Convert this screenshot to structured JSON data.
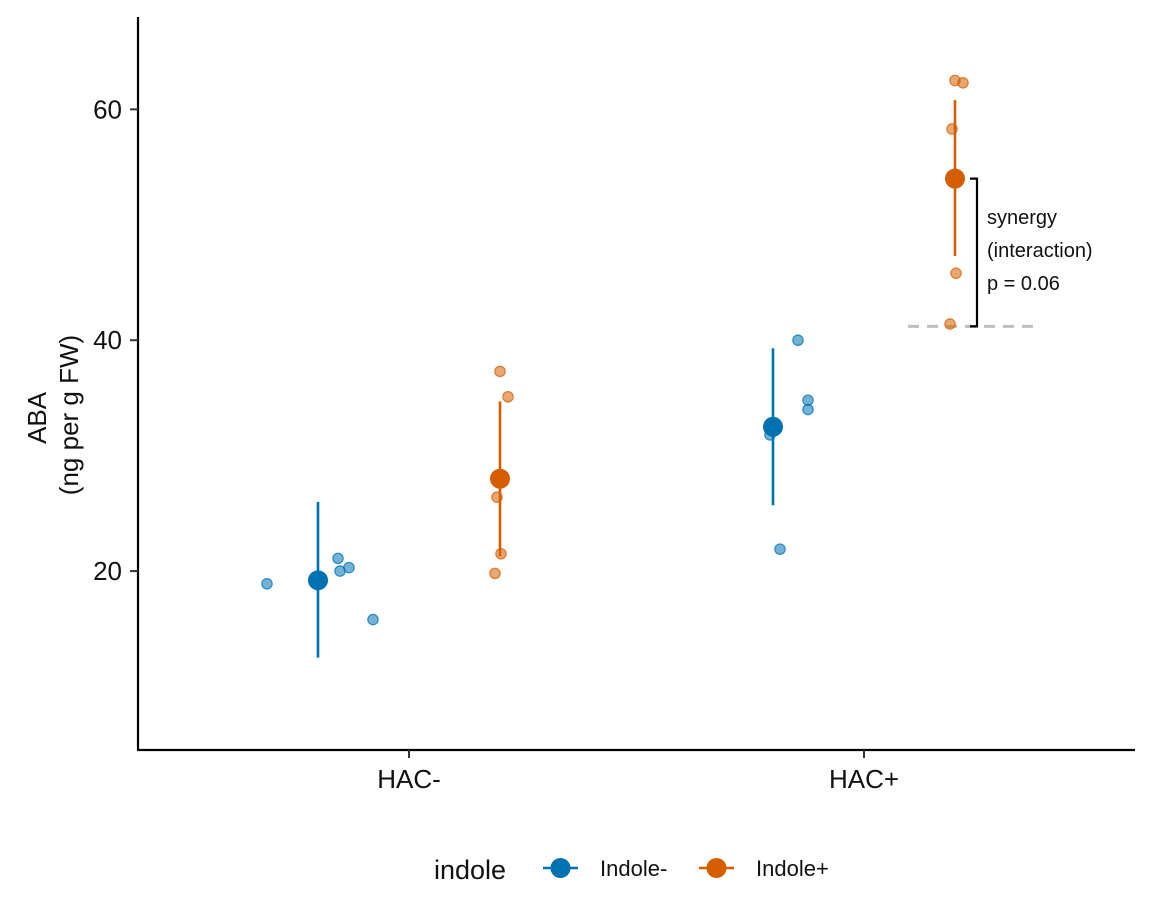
{
  "chart_data": {
    "type": "scatter",
    "ylabel": [
      "ABA",
      "(ng per g FW)"
    ],
    "ylim": [
      4.5,
      68
    ],
    "yticks": [
      20,
      40,
      60
    ],
    "categories": [
      "HAC-",
      "HAC+"
    ],
    "legend": {
      "title": "indole",
      "position": "bottom"
    },
    "grid": false,
    "series": [
      {
        "name": "Indole-",
        "color": "#0072B2",
        "summary": [
          {
            "category": "HAC-",
            "mean": 19.2,
            "low": 12.5,
            "high": 26.0
          },
          {
            "category": "HAC+",
            "mean": 32.5,
            "low": 25.7,
            "high": 39.3
          }
        ],
        "points": [
          {
            "category": "HAC-",
            "values": [
              18.9,
              21.1,
              20.0,
              20.3,
              15.8
            ]
          },
          {
            "category": "HAC+",
            "values": [
              31.8,
              21.9,
              40.0,
              34.8,
              34.0
            ]
          }
        ]
      },
      {
        "name": "Indole+",
        "color": "#D55E00",
        "summary": [
          {
            "category": "HAC-",
            "mean": 28.0,
            "low": 21.3,
            "high": 34.7
          },
          {
            "category": "HAC+",
            "mean": 54.0,
            "low": 47.3,
            "high": 60.8
          }
        ],
        "points": [
          {
            "category": "HAC-",
            "values": [
              37.3,
              35.1,
              26.4,
              21.5,
              19.8
            ]
          },
          {
            "category": "HAC+",
            "values": [
              62.5,
              62.3,
              58.3,
              45.8,
              41.4
            ]
          }
        ]
      }
    ],
    "annotation": {
      "lines": [
        "synergy",
        "(interaction)",
        "p = 0.06"
      ],
      "bracket_from": 41.2,
      "bracket_to": 54.0,
      "reference_line_y": 41.2
    }
  }
}
